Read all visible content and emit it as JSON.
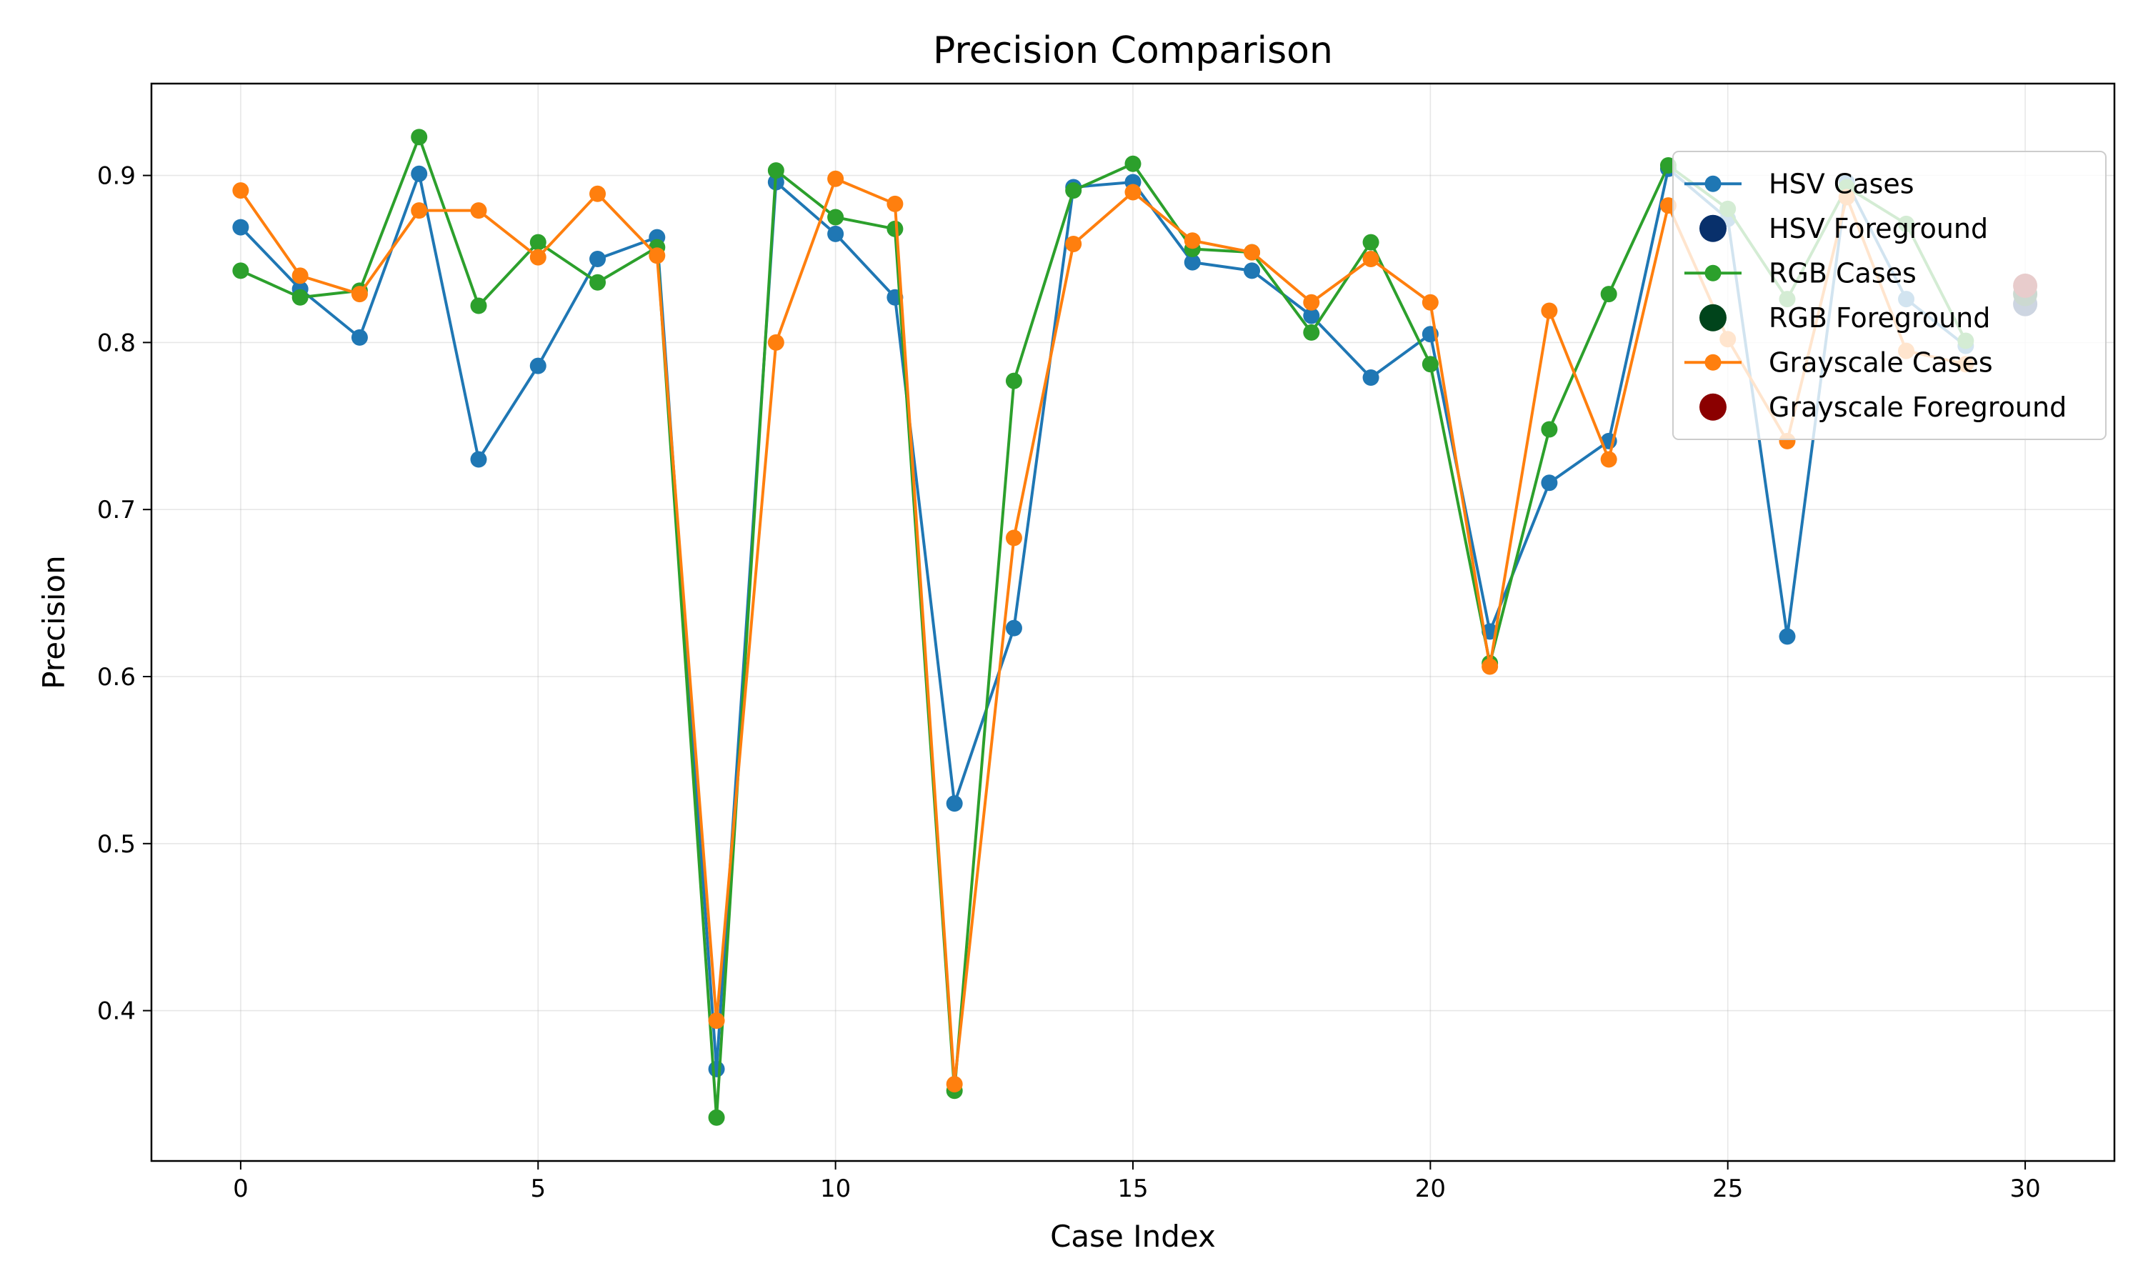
{
  "chart_data": {
    "type": "line",
    "title": "Precision Comparison",
    "xlabel": "Case Index",
    "ylabel": "Precision",
    "xlim": [
      -1.5,
      31.5
    ],
    "ylim": [
      0.31,
      0.955
    ],
    "xticks": [
      0,
      5,
      10,
      15,
      20,
      25,
      30
    ],
    "yticks": [
      0.4,
      0.5,
      0.6,
      0.7,
      0.8,
      0.9
    ],
    "grid": true,
    "legend_position": "upper right",
    "x": [
      0,
      1,
      2,
      3,
      4,
      5,
      6,
      7,
      8,
      9,
      10,
      11,
      12,
      13,
      14,
      15,
      16,
      17,
      18,
      19,
      20,
      21,
      22,
      23,
      24,
      25,
      26,
      27,
      28,
      29
    ],
    "series": [
      {
        "name": "HSV Cases",
        "color": "#1f77b4",
        "values": [
          0.869,
          0.832,
          0.803,
          0.901,
          0.73,
          0.786,
          0.85,
          0.863,
          0.365,
          0.896,
          0.865,
          0.827,
          0.524,
          0.629,
          0.893,
          0.896,
          0.848,
          0.843,
          0.816,
          0.779,
          0.805,
          0.627,
          0.716,
          0.741,
          0.904,
          0.874,
          0.624,
          0.896,
          0.826,
          0.798
        ]
      },
      {
        "name": "RGB Cases",
        "color": "#2ca02c",
        "values": [
          0.843,
          0.827,
          0.831,
          0.923,
          0.822,
          0.86,
          0.836,
          0.857,
          0.336,
          0.903,
          0.875,
          0.868,
          0.352,
          0.777,
          0.891,
          0.907,
          0.856,
          0.854,
          0.806,
          0.86,
          0.787,
          0.608,
          0.748,
          0.829,
          0.906,
          0.88,
          0.826,
          0.893,
          0.871,
          0.801
        ]
      },
      {
        "name": "Grayscale Cases",
        "color": "#ff7f0e",
        "values": [
          0.891,
          0.84,
          0.829,
          0.879,
          0.879,
          0.851,
          0.889,
          0.852,
          0.394,
          0.8,
          0.898,
          0.883,
          0.356,
          0.683,
          0.859,
          0.89,
          0.861,
          0.854,
          0.824,
          0.85,
          0.824,
          0.606,
          0.819,
          0.73,
          0.882,
          0.802,
          0.741,
          0.887,
          0.795,
          0.787
        ]
      }
    ],
    "foreground": [
      {
        "name": "HSV Foreground",
        "color": "#08306b",
        "x": 30,
        "value": 0.823
      },
      {
        "name": "RGB Foreground",
        "color": "#00441b",
        "x": 30,
        "value": 0.829
      },
      {
        "name": "Grayscale Foreground",
        "color": "#8b0000",
        "x": 30,
        "value": 0.834
      }
    ],
    "legend": [
      {
        "label": "HSV Cases",
        "kind": "line",
        "color": "#1f77b4"
      },
      {
        "label": "HSV Foreground",
        "kind": "dot",
        "color": "#08306b"
      },
      {
        "label": "RGB Cases",
        "kind": "line",
        "color": "#2ca02c"
      },
      {
        "label": "RGB Foreground",
        "kind": "dot",
        "color": "#00441b"
      },
      {
        "label": "Grayscale Cases",
        "kind": "line",
        "color": "#ff7f0e"
      },
      {
        "label": "Grayscale Foreground",
        "kind": "dot",
        "color": "#8b0000"
      }
    ]
  }
}
